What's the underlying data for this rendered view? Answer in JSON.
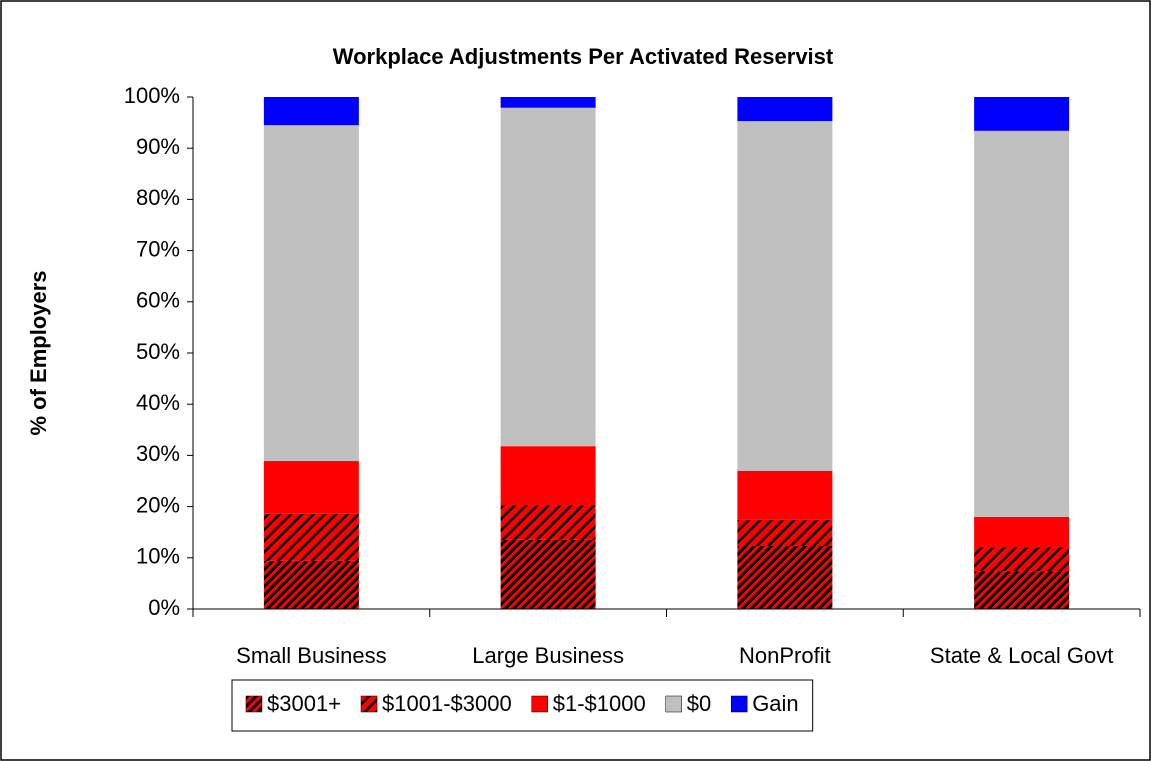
{
  "chart_data": {
    "type": "stacked_bar",
    "title": "Workplace Adjustments Per Activated Reservist",
    "y_label": "% of Employers",
    "categories": [
      "Small Business",
      "Large Business",
      "NonProfit",
      "State & Local Govt"
    ],
    "series": [
      {
        "name": "$3001+",
        "color": "#ff0000",
        "hatch": "dense",
        "values": [
          9.4,
          13.5,
          12.3,
          7.4
        ]
      },
      {
        "name": "$1001-$3000",
        "color": "#ff0000",
        "hatch": "sparse",
        "values": [
          9.2,
          6.8,
          5.1,
          4.7
        ]
      },
      {
        "name": "$1-$1000",
        "color": "#ff0000",
        "values": [
          10.3,
          11.5,
          9.6,
          5.9
        ]
      },
      {
        "name": "$0",
        "color": "#c0c0c0",
        "values": [
          65.6,
          66.1,
          68.3,
          75.4
        ]
      },
      {
        "name": "Gain",
        "color": "#0000ff",
        "values": [
          5.5,
          2.1,
          4.7,
          6.6
        ]
      }
    ],
    "ylim": [
      0,
      100
    ],
    "yticks": [
      {
        "value": 0,
        "label": "0%"
      },
      {
        "value": 10,
        "label": "10%"
      },
      {
        "value": 20,
        "label": "20%"
      },
      {
        "value": 30,
        "label": "30%"
      },
      {
        "value": 40,
        "label": "40%"
      },
      {
        "value": 50,
        "label": "50%"
      },
      {
        "value": 60,
        "label": "60%"
      },
      {
        "value": 70,
        "label": "70%"
      },
      {
        "value": 80,
        "label": "80%"
      },
      {
        "value": 90,
        "label": "90%"
      },
      {
        "value": 100,
        "label": "100%"
      }
    ],
    "grid": false,
    "legend": "bottom"
  }
}
